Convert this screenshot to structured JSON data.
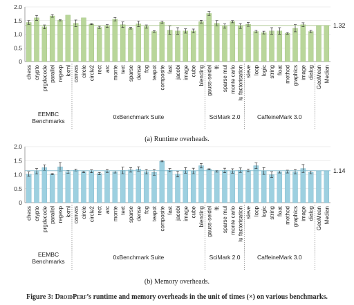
{
  "figure": {
    "label": "Figure 3:",
    "name": "DroidPerf",
    "text": "’s runtime and memory overheads in the unit of times (×) on various benchmarks."
  },
  "chart_data": [
    {
      "type": "bar",
      "subcaption": "(a) Runtime overheads.",
      "ylim": [
        0,
        2
      ],
      "yticks": [
        0,
        0.5,
        1,
        1.5,
        2
      ],
      "ytick_labels": [
        "0",
        "0.5",
        "1.0",
        "1.5",
        "2.0"
      ],
      "grid": "horizontal",
      "bar_color": "#b9d69a",
      "bar_edge": "#9bbd7a",
      "categories": [
        "chess",
        "crypto",
        "prgdecode",
        "parallel",
        "regexp",
        "kxml",
        "canvas",
        "circle",
        "circle2",
        "rect",
        "arc",
        "monte",
        "text",
        "sparse",
        "dense",
        "fog",
        "teapot",
        "composite",
        "fast",
        "jacobi",
        "image",
        "cube",
        "blending",
        "gauss-seidel",
        "fft",
        "sparse mul",
        "monte carlo",
        "lu factorisation",
        "sieve",
        "loop",
        "logic",
        "string",
        "float",
        "method",
        "graphics",
        "image",
        "dialog",
        "GeoMean",
        "Median"
      ],
      "values": [
        1.43,
        1.6,
        1.27,
        1.67,
        1.51,
        1.7,
        1.4,
        1.6,
        1.37,
        1.25,
        1.3,
        1.55,
        1.35,
        1.22,
        1.38,
        1.28,
        1.1,
        1.44,
        1.15,
        1.12,
        1.12,
        1.12,
        1.46,
        1.76,
        1.4,
        1.3,
        1.46,
        1.3,
        1.36,
        1.1,
        1.06,
        1.12,
        1.12,
        1.03,
        1.22,
        1.35,
        1.1,
        1.32,
        1.32
      ],
      "errors": [
        0.07,
        0.09,
        0.07,
        0.05,
        0.02,
        0,
        0.12,
        0,
        0.02,
        0.04,
        0.05,
        0.06,
        0.1,
        0.03,
        0.1,
        0.06,
        0.03,
        0.04,
        0.15,
        0.12,
        0.08,
        0.07,
        0.05,
        0.07,
        0.1,
        0.08,
        0.04,
        0.09,
        0.07,
        0.04,
        0.05,
        0.12,
        0.12,
        0.03,
        0.13,
        0.07,
        0.04,
        0,
        0
      ],
      "median_line": 1.32,
      "median_label": "1.32",
      "groups": [
        {
          "name": "EEMBC Benchmarks",
          "start": 0,
          "end": 5
        },
        {
          "name": "0xBenchmark Suite",
          "start": 6,
          "end": 22
        },
        {
          "name": "SciMark 2.0",
          "start": 23,
          "end": 27
        },
        {
          "name": "CaffeineMark 3.0",
          "start": 28,
          "end": 36
        }
      ]
    },
    {
      "type": "bar",
      "subcaption": "(b) Memory overheads.",
      "ylim": [
        0,
        2
      ],
      "yticks": [
        0,
        0.5,
        1,
        1.5,
        2
      ],
      "ytick_labels": [
        "0",
        "0.5",
        "1.0",
        "1.5",
        "2.0"
      ],
      "grid": "horizontal",
      "bar_color": "#9dd0e0",
      "bar_edge": "#7ab5c8",
      "categories": [
        "chess",
        "crypto",
        "prgdecode",
        "parallel",
        "regexp",
        "kxml",
        "canvas",
        "circle",
        "circle2",
        "rect",
        "arc",
        "monte",
        "text",
        "sparse",
        "dense",
        "fog",
        "teapot",
        "composite",
        "fast",
        "jacobi",
        "image",
        "cube",
        "blending",
        "gauss-seidel",
        "fft",
        "sparse mul",
        "monte carlo",
        "lu factorisation",
        "sieve",
        "loop",
        "logic",
        "string",
        "float",
        "method",
        "graphics",
        "image",
        "dialog",
        "GeoMean",
        "Median"
      ],
      "values": [
        1.02,
        1.12,
        1.25,
        1.02,
        1.28,
        1.1,
        1.16,
        1.1,
        1.12,
        1.04,
        1.13,
        1.1,
        1.15,
        1.17,
        1.2,
        1.1,
        1.08,
        1.48,
        1.16,
        1.02,
        1.15,
        1.13,
        1.32,
        1.19,
        1.12,
        1.15,
        1.13,
        1.16,
        1.15,
        1.32,
        1.13,
        1.0,
        1.1,
        1.11,
        1.1,
        1.22,
        1.08,
        1.14,
        1.14
      ],
      "errors": [
        0.08,
        0.1,
        0.1,
        0.02,
        0.15,
        0.05,
        0.03,
        0.03,
        0.05,
        0.04,
        0.05,
        0.04,
        0.12,
        0.08,
        0.08,
        0.08,
        0.1,
        0.02,
        0.06,
        0.1,
        0.1,
        0.1,
        0.08,
        0.02,
        0.03,
        0.08,
        0.08,
        0.08,
        0.05,
        0.1,
        0.12,
        0.1,
        0.04,
        0.05,
        0.08,
        0.14,
        0.05,
        0,
        0
      ],
      "median_line": 1.14,
      "median_label": "1.14",
      "groups": [
        {
          "name": "EEMBC Benchmarks",
          "start": 0,
          "end": 5
        },
        {
          "name": "0xBenchmark Suite",
          "start": 6,
          "end": 22
        },
        {
          "name": "SciMark 2.0",
          "start": 23,
          "end": 27
        },
        {
          "name": "CaffeineMark 3.0",
          "start": 28,
          "end": 36
        }
      ]
    }
  ]
}
